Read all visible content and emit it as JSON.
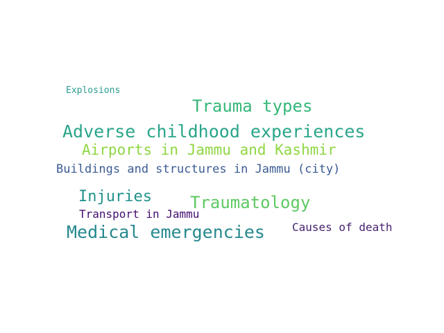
{
  "words": [
    {
      "text": "Explosions",
      "color": "#2a9d8f"
    },
    {
      "text": "Trauma types",
      "color": "#35b779"
    },
    {
      "text": "Adverse childhood experiences",
      "color": "#2aa58a"
    },
    {
      "text": "Airports in Jammu and Kashmir",
      "color": "#8fd744"
    },
    {
      "text": "Buildings and structures in Jammu (city)",
      "color": "#3b5b92"
    },
    {
      "text": "Injuries",
      "color": "#22928c"
    },
    {
      "text": "Traumatology",
      "color": "#5ec962"
    },
    {
      "text": "Transport in Jammu",
      "color": "#440c6e"
    },
    {
      "text": "Medical emergencies",
      "color": "#25888e"
    },
    {
      "text": "Causes of death",
      "color": "#46226f"
    }
  ]
}
